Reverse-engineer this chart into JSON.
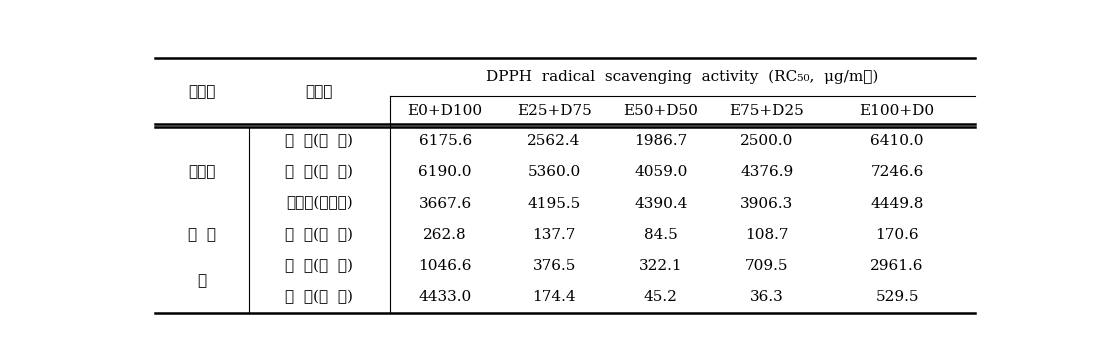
{
  "col_header_top": "DPPH  radical  scavenging  activity  (RC₅₀,  μg/mℓ)",
  "col_header_sub": [
    "E0+D100",
    "E25+D75",
    "E50+D50",
    "E75+D25",
    "E100+D0"
  ],
  "groups": [
    {
      "group_name": "뽕나무",
      "rows": [
        {
          "name": "상  엽(桑  葉)",
          "values": [
            "6175.6",
            "2562.4",
            "1986.7",
            "2500.0",
            "6410.0"
          ]
        },
        {
          "name": "상  지(桑  枝)",
          "values": [
            "6190.0",
            "5360.0",
            "4059.0",
            "4376.9",
            "7246.6"
          ]
        },
        {
          "name": "상백피(桑白皮)",
          "values": [
            "3667.6",
            "4195.5",
            "4390.4",
            "3906.3",
            "4449.8"
          ]
        }
      ]
    },
    {
      "group_name": "편  백",
      "rows": [
        {
          "name": "편  백(扁  柏)",
          "values": [
            "262.8",
            "137.7",
            "84.5",
            "108.7",
            "170.6"
          ]
        }
      ]
    },
    {
      "group_name": "감",
      "rows": [
        {
          "name": "시  엽(柿  葉)",
          "values": [
            "1046.6",
            "376.5",
            "322.1",
            "709.5",
            "2961.6"
          ]
        },
        {
          "name": "시  자(柿  子)",
          "values": [
            "4433.0",
            "174.4",
            "45.2",
            "36.3",
            "529.5"
          ]
        }
      ]
    }
  ],
  "font_size": 11,
  "header_font_size": 11,
  "bg_color": "#ffffff",
  "text_color": "#000000"
}
